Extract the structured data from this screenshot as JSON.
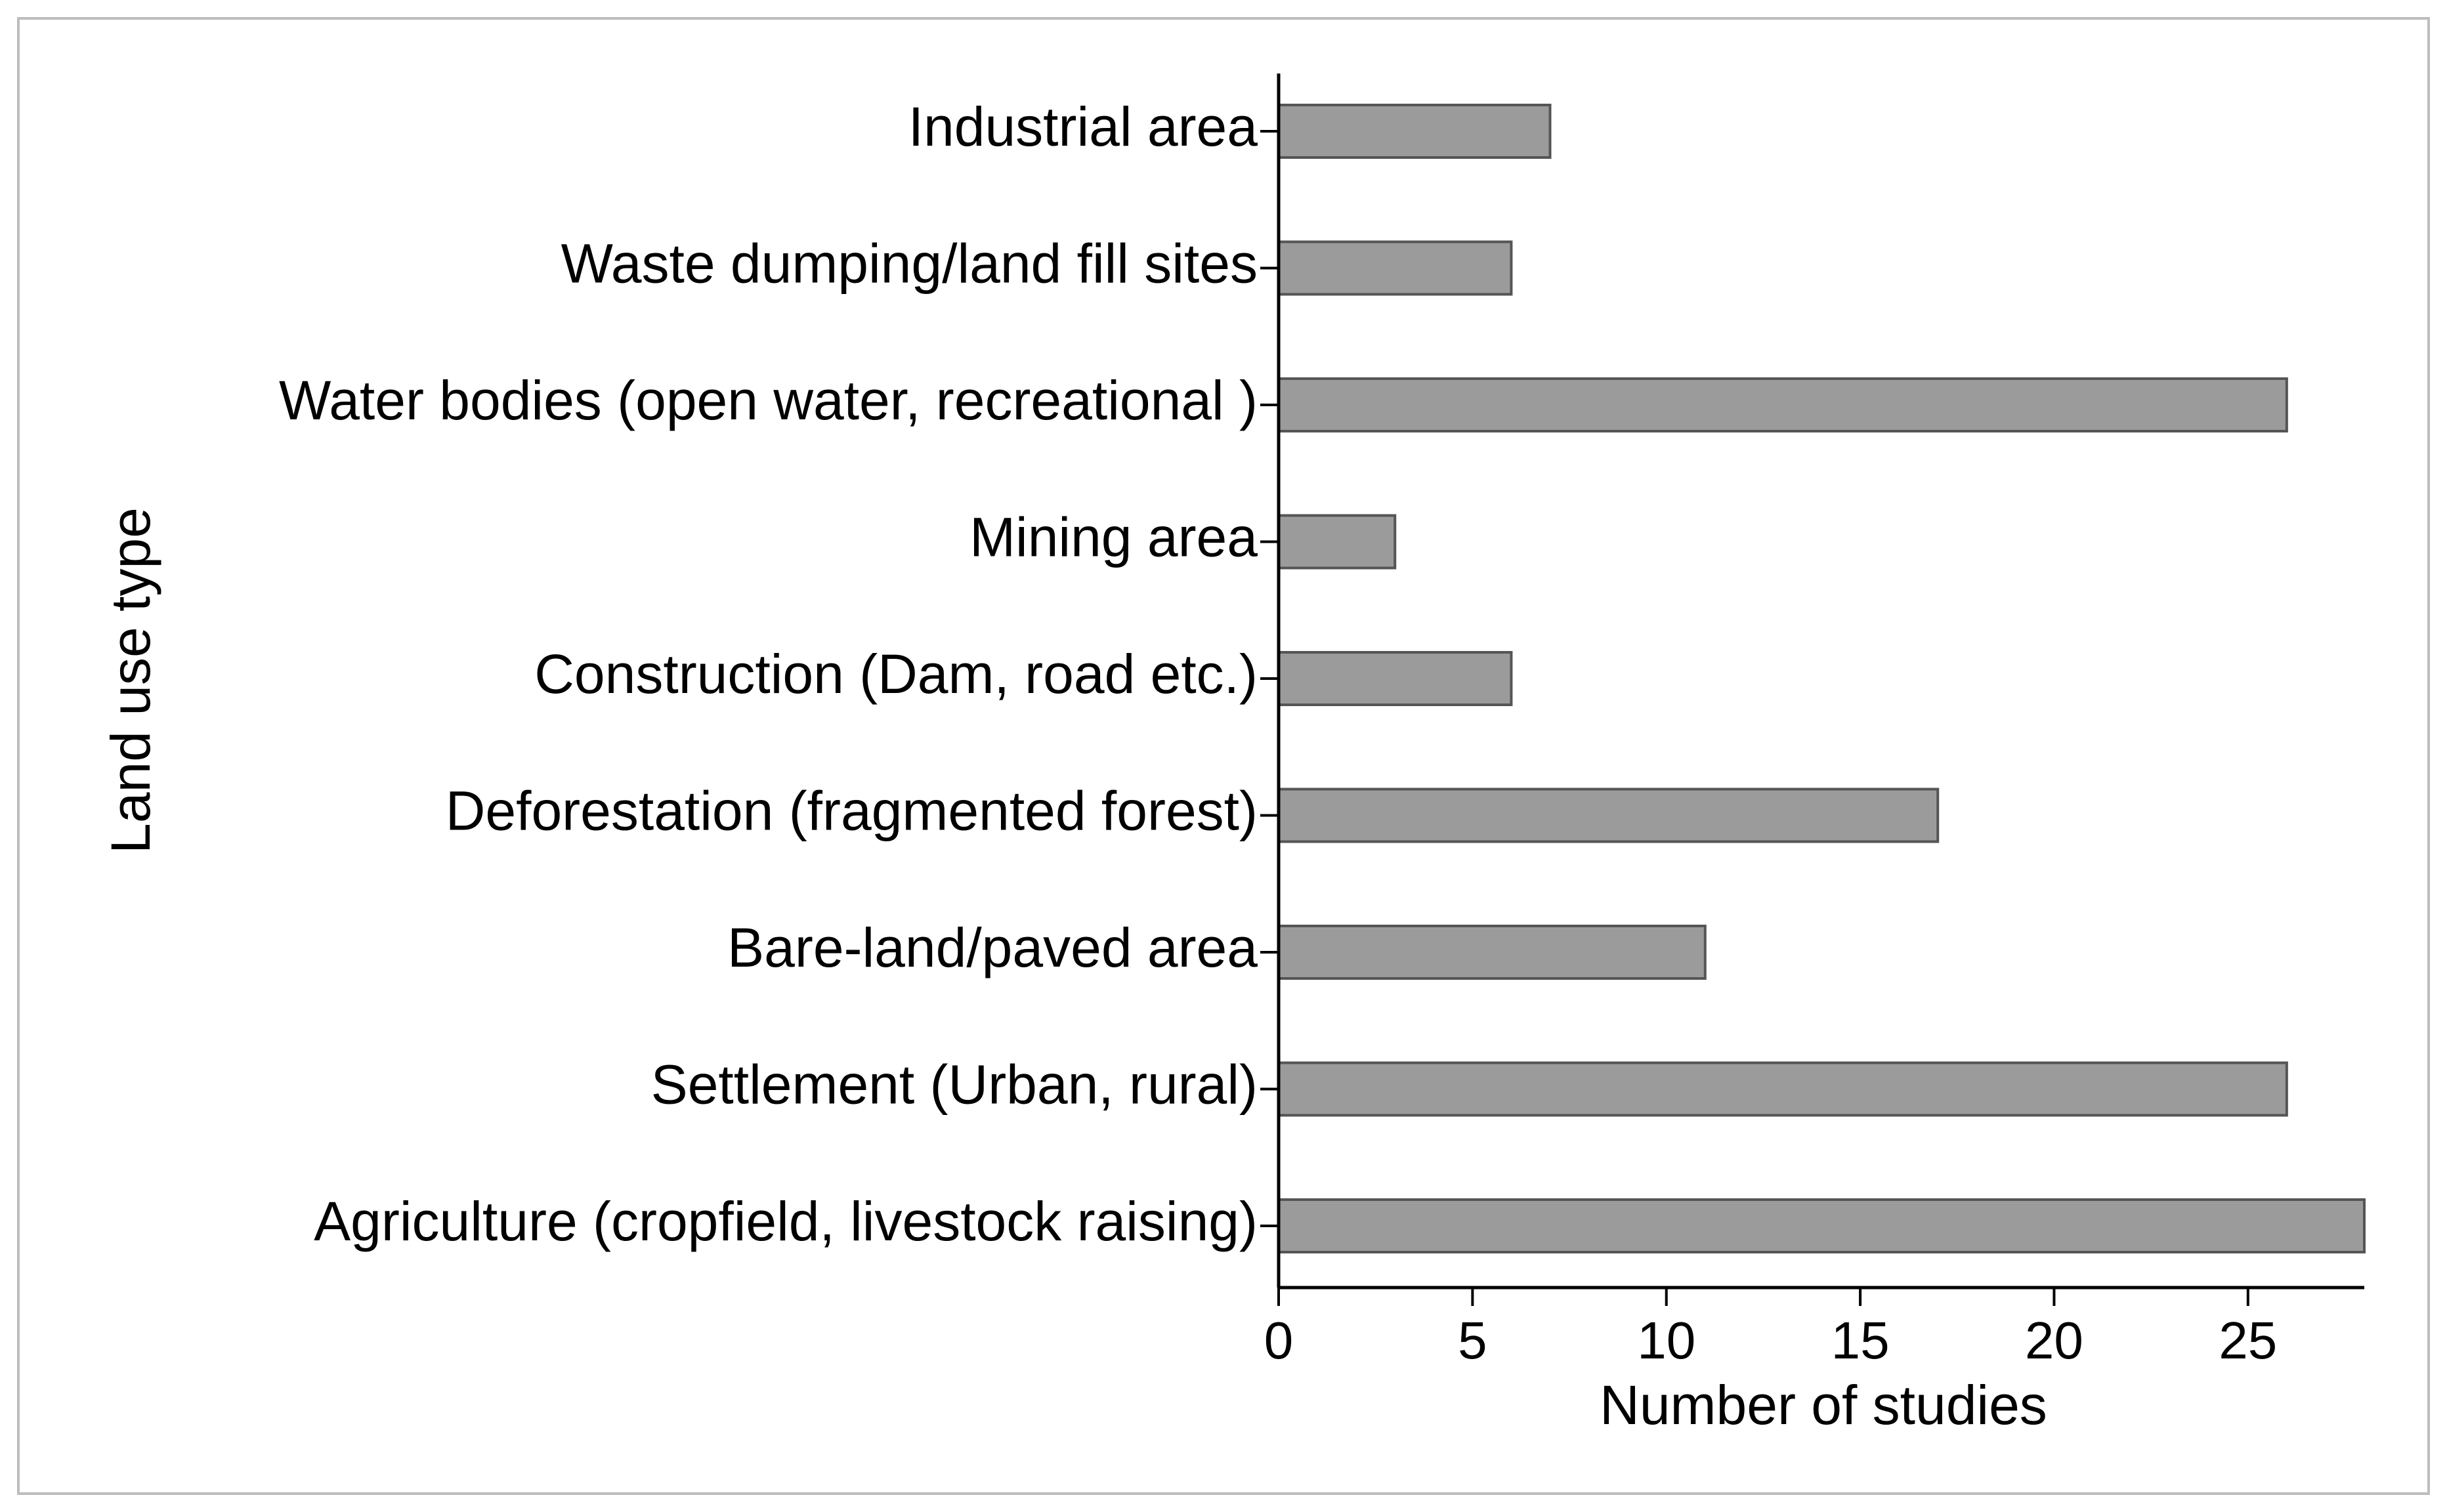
{
  "chart_data": {
    "type": "bar",
    "orientation": "horizontal",
    "title": "",
    "xlabel": "Number of studies",
    "ylabel": "Land use type",
    "categories": [
      "Industrial area",
      "Waste dumping/land fill sites",
      "Water bodies (open water, recreational )",
      "Mining area",
      "Construction (Dam, road etc.)",
      "Deforestation (fragmented forest)",
      "Bare-land/paved area",
      "Settlement (Urban, rural)",
      "Agriculture (cropfield, livestock raising)"
    ],
    "values": [
      7,
      6,
      26,
      3,
      6,
      17,
      11,
      26,
      28
    ],
    "xlim": [
      0,
      28
    ],
    "xticks": [
      0,
      5,
      10,
      15,
      20,
      25
    ],
    "grid": false,
    "legend": "none",
    "bar_color": "#9b9b9b",
    "bar_edge_color": "#555555"
  }
}
